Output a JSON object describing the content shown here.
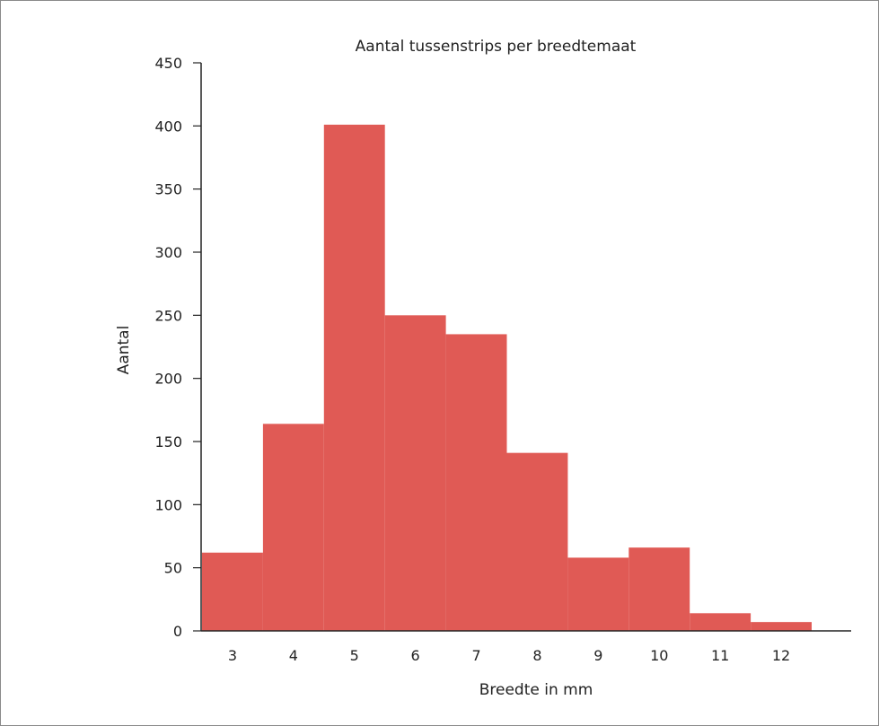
{
  "chart_data": {
    "type": "bar",
    "title": "Aantal tussenstrips per breedtemaat",
    "xlabel": "Breedte in mm",
    "ylabel": "Aantal",
    "categories": [
      "3",
      "4",
      "5",
      "6",
      "7",
      "8",
      "9",
      "10",
      "11",
      "12"
    ],
    "values": [
      62,
      164,
      401,
      250,
      235,
      141,
      58,
      66,
      14,
      7
    ],
    "ylim": [
      0,
      450
    ],
    "yticks": [
      "0",
      "50",
      "100",
      "150",
      "200",
      "250",
      "300",
      "350",
      "400",
      "450"
    ],
    "grid": false,
    "bar_color": "#e05a55"
  }
}
